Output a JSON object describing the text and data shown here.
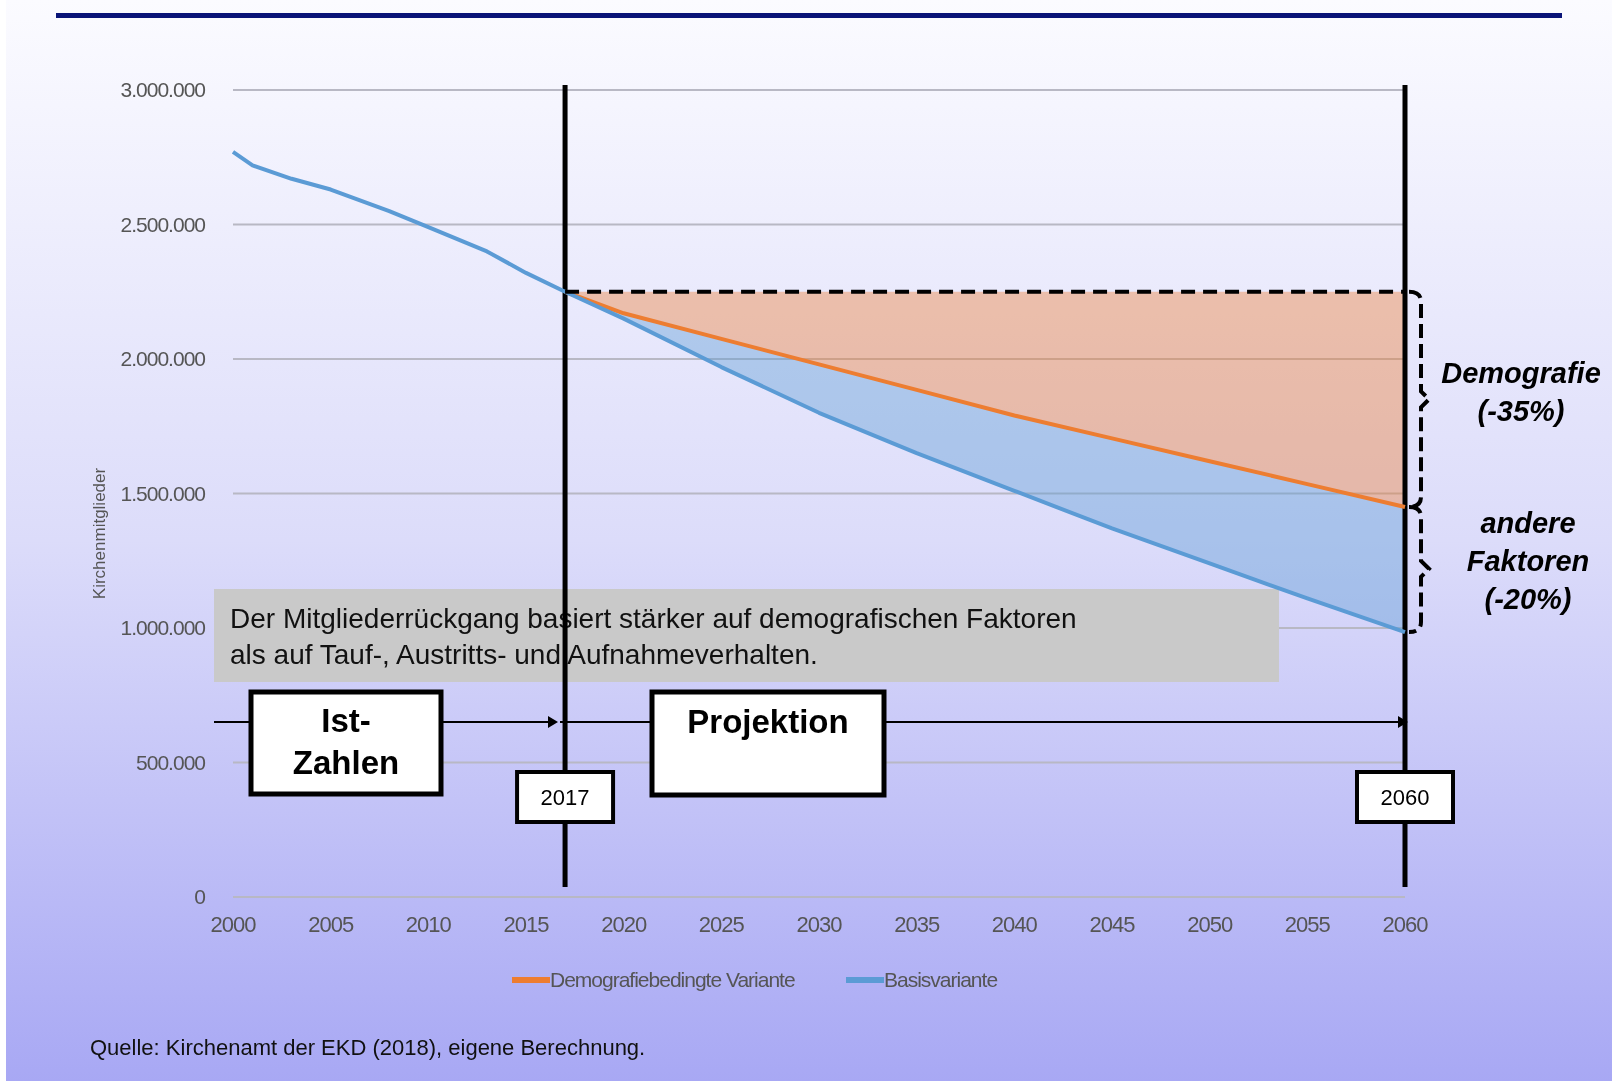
{
  "chart_data": {
    "type": "line",
    "ylabel": "Kirchenmitglieder",
    "x": [
      2000,
      2001,
      2003,
      2005,
      2008,
      2010,
      2013,
      2015,
      2017,
      2020,
      2025,
      2030,
      2035,
      2040,
      2045,
      2050,
      2055,
      2060
    ],
    "series": [
      {
        "name": "Demografiebedingte Variante",
        "color": "#ed7d31",
        "x": [
          2017,
          2020,
          2025,
          2030,
          2035,
          2040,
          2045,
          2050,
          2055,
          2060
        ],
        "values": [
          2250000,
          2170000,
          2075000,
          1980000,
          1885000,
          1790000,
          1705000,
          1620000,
          1535000,
          1450000
        ],
        "lower": [
          2250000,
          2170000,
          2075000,
          1980000,
          1885000,
          1790000,
          1705000,
          1620000,
          1535000,
          1450000
        ],
        "upper": [
          2250000,
          2250000,
          2250000,
          2250000,
          2250000,
          2250000,
          2250000,
          2250000,
          2250000,
          2250000
        ]
      },
      {
        "name": "Basisvariante",
        "color": "#5b9bd5",
        "values": [
          2770000,
          2720000,
          2670000,
          2630000,
          2550000,
          2490000,
          2400000,
          2320000,
          2250000,
          2150000,
          1970000,
          1800000,
          1650000,
          1510000,
          1370000,
          1240000,
          1110000,
          985000
        ],
        "lower": [
          null,
          null,
          null,
          null,
          null,
          null,
          null,
          null,
          2250000,
          2150000,
          1970000,
          1800000,
          1650000,
          1510000,
          1370000,
          1240000,
          1110000,
          985000
        ],
        "upper": [
          null,
          null,
          null,
          null,
          null,
          null,
          null,
          null,
          2250000,
          2170000,
          2075000,
          1980000,
          1885000,
          1790000,
          1705000,
          1620000,
          1535000,
          1450000
        ]
      },
      {
        "type": "line",
        "color": "#000000",
        "line_style": "dashed",
        "x": [
          2017,
          2060
        ],
        "values": [
          2250000,
          2250000
        ]
      }
    ],
    "xlim": [
      2000,
      2060
    ],
    "xticks": [
      2000,
      2005,
      2010,
      2015,
      2020,
      2025,
      2030,
      2035,
      2040,
      2045,
      2050,
      2055,
      2060
    ],
    "ylim": [
      0,
      3000000
    ],
    "yticks": [
      {
        "value": 0,
        "label": "0"
      },
      {
        "value": 500000,
        "label": "500.000"
      },
      {
        "value": 1000000,
        "label": "1.000.000"
      },
      {
        "value": 1500000,
        "label": "1.500.000"
      },
      {
        "value": 2000000,
        "label": "2.000.000"
      },
      {
        "value": 2500000,
        "label": "2.500.000"
      },
      {
        "value": 3000000,
        "label": "3.000.000"
      }
    ],
    "grid": "y",
    "legend": "bottom",
    "marker": "none",
    "line_style": "solid",
    "ref_lines": [
      {
        "axis": "x",
        "value": 2017,
        "label": "2017",
        "color": "#000000"
      },
      {
        "axis": "x",
        "value": 2060,
        "label": "2060",
        "color": "#000000"
      }
    ],
    "annotations": [
      "Der Mitgliederrückgang basiert stärker auf demografischen Faktoren\nals auf Tauf-, Austritts- und Aufnahmeverhalten.",
      "Ist-\nZahlen",
      "Projektion",
      "Demografie\n(-35%)",
      "andere\nFaktoren\n(-20%)",
      "Quelle: Kirchenamt der EKD (2018), eigene Berechnung."
    ]
  }
}
